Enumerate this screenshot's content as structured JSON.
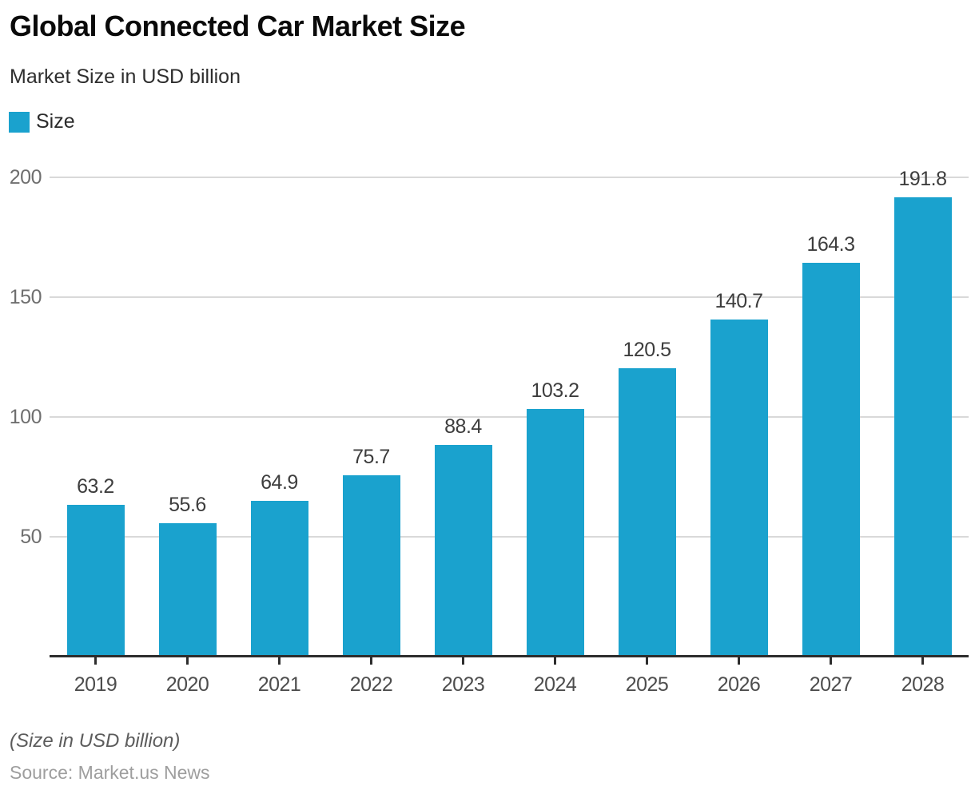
{
  "header": {
    "title": "Global Connected Car Market Size",
    "subtitle": "Market Size in USD billion"
  },
  "legend": {
    "label": "Size",
    "swatch_color": "#1aa2ce"
  },
  "chart_data": {
    "type": "bar",
    "title": "Global Connected Car Market Size",
    "subtitle": "Market Size in USD billion",
    "series_name": "Size",
    "categories": [
      "2019",
      "2020",
      "2021",
      "2022",
      "2023",
      "2024",
      "2025",
      "2026",
      "2027",
      "2028"
    ],
    "values": [
      63.2,
      55.6,
      64.9,
      75.7,
      88.4,
      103.2,
      120.5,
      140.7,
      164.3,
      191.8
    ],
    "bar_color": "#1aa2ce",
    "xlabel": "",
    "ylabel": "",
    "ylim": [
      0,
      200
    ],
    "yticks": [
      50,
      100,
      150,
      200
    ],
    "grid": "horizontal",
    "gridline_color": "#d9d9d9",
    "legend_position": "top-left",
    "value_labels": true
  },
  "footer": {
    "note": "(Size in USD billion)",
    "source": "Source: Market.us News"
  }
}
